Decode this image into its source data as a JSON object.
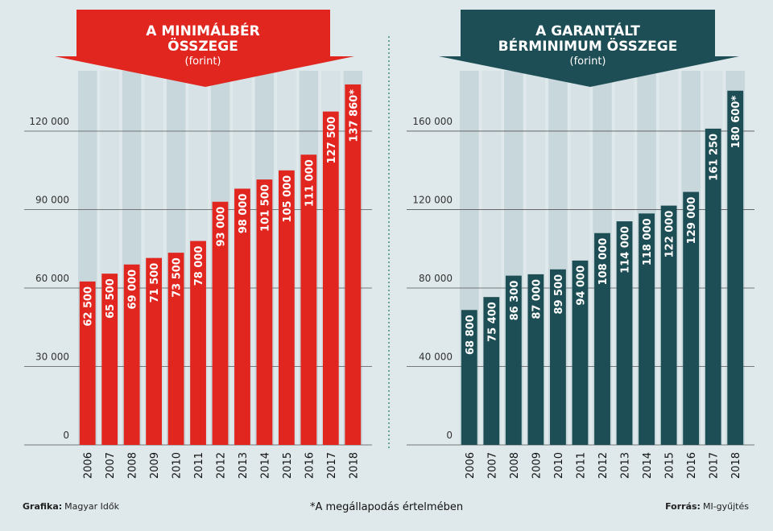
{
  "chart_data": [
    {
      "type": "bar",
      "title": "A MINIMÁLBÉR\nÖSSZEGE",
      "subtitle": "(forint)",
      "categories": [
        "2006",
        "2007",
        "2008",
        "2009",
        "2010",
        "2011",
        "2012",
        "2013",
        "2014",
        "2015",
        "2016",
        "2017",
        "2018"
      ],
      "values": [
        62500,
        65500,
        69000,
        71500,
        73500,
        78000,
        93000,
        98000,
        101500,
        105000,
        111000,
        127500,
        137860
      ],
      "value_labels": [
        "62 500",
        "65 500",
        "69 000",
        "71 500",
        "73 500",
        "78 000",
        "93 000",
        "98 000",
        "101 500",
        "105 000",
        "111 000",
        "127 500",
        "137 860*"
      ],
      "color": "#e0261f",
      "ylim": [
        0,
        140000
      ],
      "yticks": [
        0,
        {
          "value": 30000,
          "label": "30 000"
        },
        {
          "value": 60000,
          "label": "60 000"
        },
        {
          "value": 90000,
          "label": "90 000"
        },
        {
          "value": 120000,
          "label": "120 000"
        }
      ],
      "grid": true
    },
    {
      "type": "bar",
      "title": "A GARANTÁLT\nBÉRMINIMUM ÖSSZEGE",
      "subtitle": "(forint)",
      "categories": [
        "2006",
        "2007",
        "2008",
        "2009",
        "2010",
        "2011",
        "2012",
        "2013",
        "2014",
        "2015",
        "2016",
        "2017",
        "2018"
      ],
      "values": [
        68800,
        75400,
        86300,
        87000,
        89500,
        94000,
        108000,
        114000,
        118000,
        122000,
        129000,
        161250,
        180600
      ],
      "value_labels": [
        "68 800",
        "75 400",
        "86 300",
        "87 000",
        "89 500",
        "94 000",
        "108 000",
        "114 000",
        "118 000",
        "122 000",
        "129 000",
        "161 250",
        "180 600*"
      ],
      "color": "#1d4e55",
      "ylim": [
        0,
        185000
      ],
      "yticks": [
        0,
        {
          "value": 40000,
          "label": "40 000"
        },
        {
          "value": 80000,
          "label": "80 000"
        },
        {
          "value": 120000,
          "label": "120 000"
        },
        {
          "value": 160000,
          "label": "160 000"
        }
      ],
      "grid": true
    }
  ],
  "footer": {
    "credit_label": "Grafika:",
    "credit": "Magyar Idők",
    "note": "*A megállapodás értelmében",
    "source_label": "Forrás:",
    "source": "MI-gyűjtés"
  }
}
